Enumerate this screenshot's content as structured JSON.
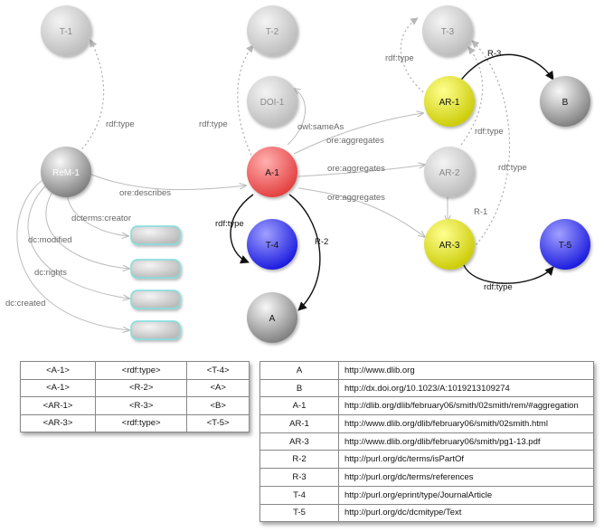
{
  "nodes": {
    "t1": "T-1",
    "t2": "T-2",
    "t3": "T-3",
    "doi1": "DOI-1",
    "ar1": "AR-1",
    "b": "B",
    "rem1": "ReM-1",
    "a1": "A-1",
    "ar2": "AR-2",
    "t4": "T-4",
    "ar3": "AR-3",
    "t5": "T-5",
    "a": "A"
  },
  "edges": {
    "rem1_rdftype": "rdf:type",
    "a1_rdftype_t2": "rdf:type",
    "owl_sameas": "owl:sameAs",
    "ore_describes": "ore:describes",
    "dcterms_creator": "dcterms:creator",
    "dc_modified": "dc:modified",
    "dc_rights": "dc:rights",
    "dc_created": "dc:created",
    "aggregates1": "ore:aggregates",
    "aggregates2": "ore:aggregates",
    "aggregates3": "ore:aggregates",
    "ar1_rdftype": "rdf:type",
    "r3": "R-3",
    "ar2_rdftype": "rdf:type",
    "ar3_rdftype": "rdf:type",
    "r1": "R-1",
    "a1_rdftype_t4": "rdf:type",
    "r2": "R-2",
    "ar3_rdftype_t5": "rdf:type"
  },
  "colors": {
    "gray_node": "#cfcfcf",
    "red_node": "#ee4444",
    "yellow_node": "#dede00",
    "blue_node": "#2222ee",
    "literal_box": "#c8c8c8",
    "literal_border": "#7fdede"
  },
  "triples": [
    [
      "<A-1>",
      "<rdf:type>",
      "<T-4>"
    ],
    [
      "<A-1>",
      "<R-2>",
      "<A>"
    ],
    [
      "<AR-1>",
      "<R-3>",
      "<B>"
    ],
    [
      "<AR-3>",
      "<rdf:type>",
      "<T-5>"
    ]
  ],
  "lookup": [
    [
      "A",
      "http://www.dlib.org"
    ],
    [
      "B",
      "http://dx.doi.org/10.1023/A:1019213109274"
    ],
    [
      "A-1",
      "http://dlib.org/dlib/february06/smith/02smith/rem/#aggregation"
    ],
    [
      "AR-1",
      "http://www.dlib.org/dlib/february06/smith/02smith.html"
    ],
    [
      "AR-3",
      "http://www.dlib.org/dlib/february06/smith/pg1-13.pdf"
    ],
    [
      "R-2",
      "http://purl.org/dc/terms/isPartOf"
    ],
    [
      "R-3",
      "http://purl.org/dc/terms/references"
    ],
    [
      "T-4",
      "http://purl.org/eprint/type/JournalArticle"
    ],
    [
      "T-5",
      "http://purl.org/dc/dcmitype/Text"
    ]
  ]
}
